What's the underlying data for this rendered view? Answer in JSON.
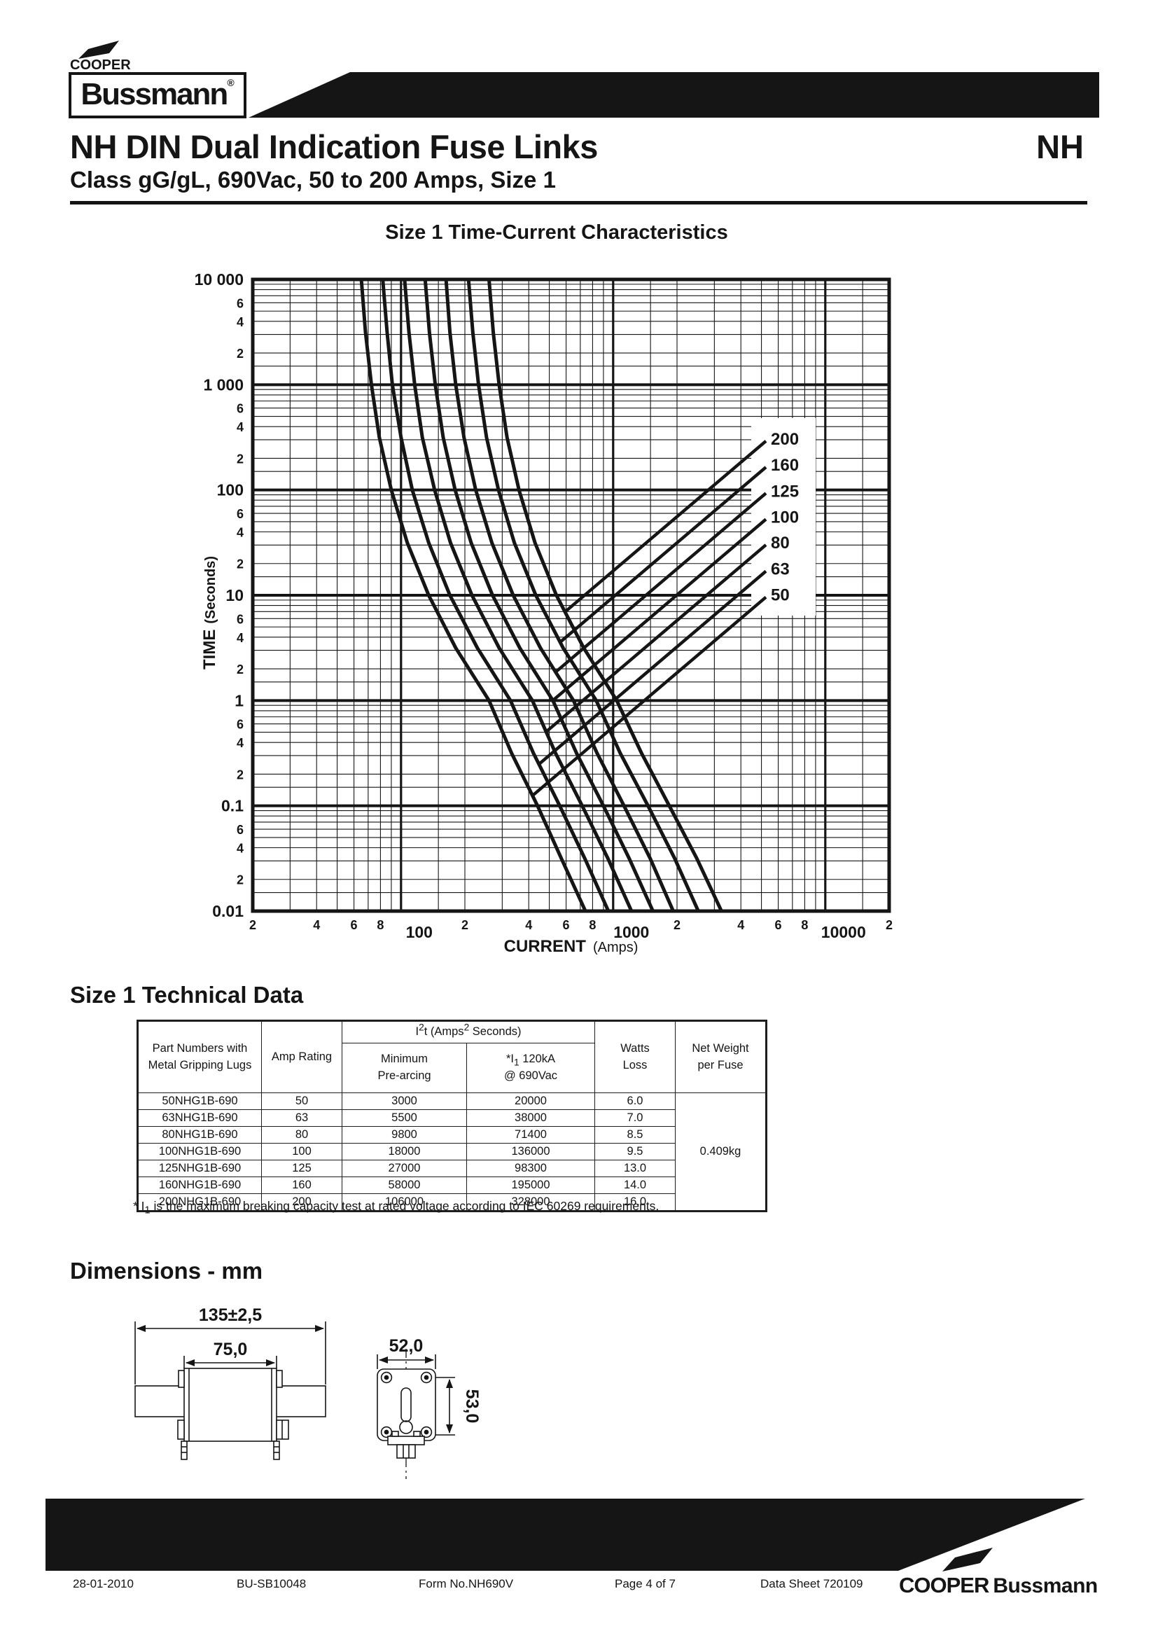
{
  "header": {
    "brand_top": "COOPER",
    "brand_name": "Bussmann",
    "brand_reg": "®",
    "title": "NH DIN Dual Indication Fuse Links",
    "corner_label": "NH",
    "subtitle": "Class gG/gL, 690Vac, 50 to 200 Amps, Size 1"
  },
  "chart_data": {
    "type": "line",
    "title": "Size 1 Time-Current Characteristics",
    "xlabel": "CURRENT",
    "xlabel_unit": "(Amps)",
    "ylabel": "TIME",
    "ylabel_unit": "(Seconds)",
    "xscale": "log",
    "yscale": "log",
    "xlim": [
      20,
      20000
    ],
    "ylim": [
      0.01,
      10000
    ],
    "grid": true,
    "x_decade_ticks": [
      100,
      1000,
      10000
    ],
    "x_decade_labels": [
      "100",
      "1000",
      "10000"
    ],
    "x_sub_tick_digits": [
      2,
      4,
      6,
      8
    ],
    "y_decade_ticks": [
      10000,
      1000,
      100,
      10,
      1,
      0.1,
      0.01
    ],
    "y_decade_labels": [
      "10 000",
      "1 000",
      "100",
      "10",
      "1",
      "0.1",
      "0.01"
    ],
    "y_sub_tick_digits": [
      6,
      4,
      2
    ],
    "t_seconds": [
      10000,
      3162,
      1000,
      316,
      100,
      31.6,
      10,
      3.16,
      1,
      0.316,
      0.1,
      0.0316,
      0.01
    ],
    "series": [
      {
        "label": "50",
        "rating_amps": 50,
        "label_t": 10.2,
        "amps": [
          65,
          68,
          72.5,
          79,
          90,
          107,
          135,
          181,
          260,
          332,
          440,
          570,
          740
        ]
      },
      {
        "label": "63",
        "rating_amps": 63,
        "label_t": 18,
        "amps": [
          82,
          86,
          91,
          100,
          113,
          135,
          170,
          229,
          328,
          421,
          560,
          735,
          950
        ]
      },
      {
        "label": "80",
        "rating_amps": 80,
        "label_t": 32,
        "amps": [
          104,
          109,
          116,
          126,
          144,
          171,
          216,
          290,
          416,
          535,
          715,
          945,
          1220
        ]
      },
      {
        "label": "100",
        "rating_amps": 100,
        "label_t": 56,
        "amps": [
          130,
          136,
          145,
          158,
          180,
          214,
          270,
          363,
          520,
          672,
          900,
          1190,
          1540
        ]
      },
      {
        "label": "125",
        "rating_amps": 125,
        "label_t": 99,
        "amps": [
          163,
          170,
          181,
          198,
          225,
          268,
          338,
          454,
          650,
          840,
          1125,
          1495,
          1920
        ]
      },
      {
        "label": "160",
        "rating_amps": 160,
        "label_t": 175,
        "amps": [
          208,
          218,
          232,
          253,
          288,
          342,
          432,
          581,
          832,
          1080,
          1460,
          1950,
          2520
        ]
      },
      {
        "label": "200",
        "rating_amps": 200,
        "label_t": 310,
        "amps": [
          260,
          272,
          290,
          316,
          360,
          428,
          540,
          726,
          1040,
          1360,
          1840,
          2480,
          3240
        ]
      }
    ]
  },
  "tech": {
    "heading": "Size 1 Technical Data",
    "table": {
      "col_part": "Part Numbers with\nMetal Gripping Lugs",
      "col_amp": "Amp Rating",
      "i2t": {
        "p1": "I",
        "sup1": "2",
        "p2": "t (Amps",
        "sup2": "2",
        "p3": " Seconds)"
      },
      "col_min": "Minimum\nPre-arcing",
      "col_i1": {
        "p1": "*I",
        "sub1": "1",
        "p2": " 120kA",
        "line2": "@ 690Vac"
      },
      "col_watts": "Watts\nLoss",
      "col_weight": "Net Weight\nper Fuse",
      "rows": [
        {
          "part": "50NHG1B-690",
          "amp": "50",
          "min": "3000",
          "i1": "20000",
          "watts": "6.0"
        },
        {
          "part": "63NHG1B-690",
          "amp": "63",
          "min": "5500",
          "i1": "38000",
          "watts": "7.0"
        },
        {
          "part": "80NHG1B-690",
          "amp": "80",
          "min": "9800",
          "i1": "71400",
          "watts": "8.5"
        },
        {
          "part": "100NHG1B-690",
          "amp": "100",
          "min": "18000",
          "i1": "136000",
          "watts": "9.5"
        },
        {
          "part": "125NHG1B-690",
          "amp": "125",
          "min": "27000",
          "i1": "98300",
          "watts": "13.0"
        },
        {
          "part": "160NHG1B-690",
          "amp": "160",
          "min": "58000",
          "i1": "195000",
          "watts": "14.0"
        },
        {
          "part": "200NHG1B-690",
          "amp": "200",
          "min": "106000",
          "i1": "328000",
          "watts": "16.0"
        }
      ],
      "weight": "0.409kg"
    },
    "footnote": {
      "p1": "* I",
      "sub": "1",
      "p2": " is the maximum breaking capacity test at rated voltage according to IEC 60269 requirements."
    }
  },
  "dimensions": {
    "heading": "Dimensions - mm",
    "overall_width": "135±2,5",
    "body_width": "75,0",
    "side_width": "52,0",
    "side_height": "53,0"
  },
  "footer": {
    "date": "28-01-2010",
    "doc_id": "BU-SB10048",
    "form_no": "Form No.NH690V",
    "page": "Page 4 of 7",
    "data_sheet": "Data Sheet 720109",
    "logo_cooper": "COOPER",
    "logo_bussmann": "Bussmann"
  },
  "colors": {
    "ink": "#151515",
    "paper": "#ffffff"
  }
}
